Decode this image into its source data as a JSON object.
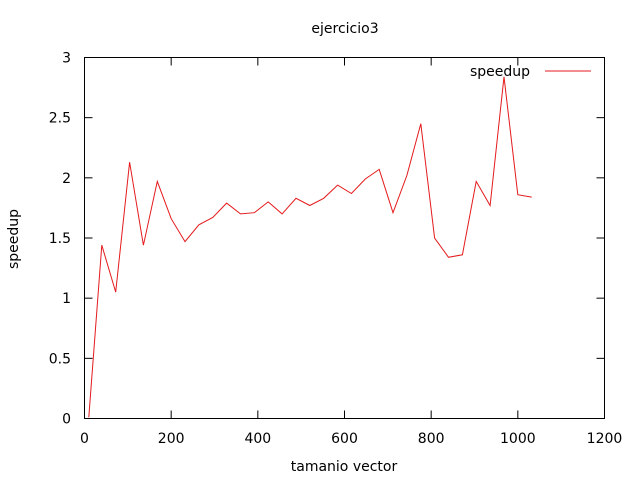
{
  "chart_data": {
    "type": "line",
    "title": "ejercicio3",
    "xlabel": "tamanio vector",
    "ylabel": "speedup",
    "xlim": [
      0,
      1200
    ],
    "ylim": [
      0,
      3
    ],
    "xticks": [
      0,
      200,
      400,
      600,
      800,
      1000,
      1200
    ],
    "yticks": [
      0,
      0.5,
      1,
      1.5,
      2,
      2.5,
      3
    ],
    "xtick_labels": [
      "0",
      "200",
      "400",
      "600",
      "800",
      "1000",
      "1200"
    ],
    "ytick_labels": [
      "0",
      "0.5",
      "1",
      "1.5",
      "2",
      "2.5",
      "3"
    ],
    "legend": "top-right",
    "grid": false,
    "series": [
      {
        "name": "speedup",
        "color": "#e41a1c",
        "x": [
          10,
          40,
          72,
          104,
          136,
          168,
          200,
          232,
          264,
          296,
          328,
          360,
          392,
          424,
          456,
          488,
          520,
          552,
          584,
          616,
          648,
          680,
          712,
          744,
          776,
          808,
          840,
          872,
          904,
          936,
          968,
          1000,
          1032
        ],
        "y": [
          0.01,
          1.44,
          1.05,
          2.13,
          1.44,
          1.97,
          1.66,
          1.47,
          1.61,
          1.67,
          1.79,
          1.7,
          1.71,
          1.8,
          1.7,
          1.83,
          1.77,
          1.83,
          1.94,
          1.87,
          1.99,
          2.07,
          1.71,
          2.02,
          2.45,
          1.5,
          1.34,
          1.36,
          1.97,
          1.77,
          2.84,
          1.86,
          1.84
        ]
      }
    ]
  }
}
